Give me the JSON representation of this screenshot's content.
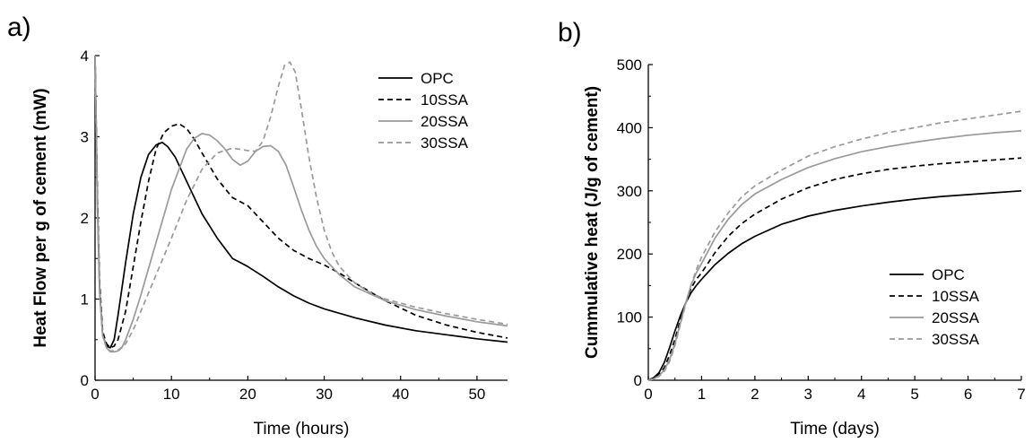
{
  "chart_data": [
    {
      "panel_label": "a)",
      "type": "line",
      "title": "",
      "xlabel": "Time (hours)",
      "ylabel": "Heat Flow per g of cement (mW)",
      "xlim": [
        0,
        54
      ],
      "ylim": [
        0,
        4
      ],
      "xticks": [
        0,
        10,
        20,
        30,
        40,
        50
      ],
      "yticks": [
        0,
        1,
        2,
        3,
        4
      ],
      "grid": false,
      "legend_position": "top-right",
      "series": [
        {
          "name": "OPC",
          "color": "#000000",
          "dash": "solid",
          "x": [
            0,
            0.3,
            0.6,
            1,
            1.5,
            2,
            2.5,
            3,
            4,
            5,
            6,
            7,
            8,
            8.8,
            9.5,
            10.5,
            12,
            14,
            16,
            18,
            19,
            20,
            22,
            24,
            26,
            28,
            30,
            34,
            38,
            42,
            46,
            50,
            54
          ],
          "y": [
            4.0,
            2.2,
            1.1,
            0.55,
            0.42,
            0.4,
            0.5,
            0.8,
            1.45,
            2.05,
            2.5,
            2.78,
            2.9,
            2.93,
            2.88,
            2.75,
            2.45,
            2.05,
            1.75,
            1.5,
            1.45,
            1.4,
            1.28,
            1.15,
            1.04,
            0.95,
            0.88,
            0.77,
            0.68,
            0.61,
            0.56,
            0.51,
            0.47
          ]
        },
        {
          "name": "10SSA",
          "color": "#000000",
          "dash": "dashed",
          "x": [
            0,
            0.3,
            0.6,
            1,
            1.5,
            2,
            2.5,
            3,
            4,
            5,
            6,
            7,
            8,
            9,
            10,
            11,
            12,
            13,
            14,
            16,
            18,
            19,
            20,
            21,
            22,
            24,
            26,
            28,
            30,
            32,
            34,
            38,
            42,
            46,
            50,
            54
          ],
          "y": [
            4.0,
            2.3,
            1.2,
            0.6,
            0.45,
            0.4,
            0.42,
            0.5,
            0.85,
            1.4,
            1.95,
            2.45,
            2.85,
            3.05,
            3.13,
            3.16,
            3.1,
            2.97,
            2.8,
            2.48,
            2.25,
            2.2,
            2.15,
            2.05,
            1.95,
            1.75,
            1.6,
            1.5,
            1.42,
            1.32,
            1.2,
            0.98,
            0.8,
            0.68,
            0.59,
            0.52
          ]
        },
        {
          "name": "20SSA",
          "color": "#9a9a9a",
          "dash": "solid",
          "x": [
            0,
            0.3,
            0.6,
            1,
            1.5,
            2,
            2.5,
            3,
            3.5,
            4,
            5,
            6,
            8,
            10,
            12,
            13,
            14,
            15,
            16,
            17,
            18,
            19,
            20,
            21,
            22,
            23,
            24,
            25,
            26,
            27,
            28,
            29,
            30,
            32,
            34,
            38,
            42,
            46,
            50,
            54
          ],
          "y": [
            4.0,
            2.2,
            1.1,
            0.55,
            0.4,
            0.35,
            0.35,
            0.36,
            0.4,
            0.5,
            0.75,
            1.05,
            1.7,
            2.35,
            2.85,
            2.98,
            3.04,
            3.02,
            2.95,
            2.85,
            2.72,
            2.65,
            2.7,
            2.82,
            2.88,
            2.89,
            2.82,
            2.65,
            2.38,
            2.1,
            1.85,
            1.65,
            1.5,
            1.3,
            1.15,
            0.98,
            0.87,
            0.79,
            0.72,
            0.67
          ]
        },
        {
          "name": "30SSA",
          "color": "#9a9a9a",
          "dash": "dashed",
          "x": [
            0,
            0.3,
            0.6,
            1,
            1.5,
            2,
            3,
            4,
            5,
            6,
            8,
            10,
            12,
            14,
            16,
            18,
            20,
            21,
            22,
            23,
            24,
            24.8,
            25.5,
            26.2,
            27,
            28,
            29,
            30,
            31,
            32,
            34,
            36,
            38,
            42,
            46,
            50,
            54
          ],
          "y": [
            4.0,
            2.1,
            1.05,
            0.55,
            0.4,
            0.36,
            0.37,
            0.45,
            0.62,
            0.85,
            1.3,
            1.75,
            2.22,
            2.6,
            2.8,
            2.86,
            2.83,
            2.82,
            2.95,
            3.25,
            3.62,
            3.88,
            3.92,
            3.8,
            3.35,
            2.75,
            2.25,
            1.85,
            1.58,
            1.4,
            1.2,
            1.08,
            1.0,
            0.9,
            0.82,
            0.75,
            0.69
          ]
        }
      ]
    },
    {
      "panel_label": "b)",
      "type": "line",
      "title": "",
      "xlabel": "Time (days)",
      "ylabel": "Cummulative heat (J/g of cement)",
      "xlim": [
        0,
        7
      ],
      "ylim": [
        0,
        500
      ],
      "xticks": [
        0,
        1,
        2,
        3,
        4,
        5,
        6,
        7
      ],
      "yticks": [
        0,
        100,
        200,
        300,
        400,
        500
      ],
      "grid": false,
      "legend_position": "bottom-right",
      "series": [
        {
          "name": "OPC",
          "color": "#000000",
          "dash": "solid",
          "x": [
            0,
            0.1,
            0.2,
            0.3,
            0.4,
            0.5,
            0.6,
            0.7,
            0.8,
            0.9,
            1.0,
            1.25,
            1.5,
            1.75,
            2.0,
            2.5,
            3.0,
            3.5,
            4.0,
            4.5,
            5.0,
            5.5,
            6.0,
            6.5,
            7.0
          ],
          "y": [
            0,
            4,
            12,
            28,
            52,
            78,
            102,
            122,
            138,
            150,
            160,
            183,
            201,
            216,
            228,
            247,
            260,
            269,
            276,
            282,
            287,
            291,
            294,
            297,
            300
          ]
        },
        {
          "name": "10SSA",
          "color": "#000000",
          "dash": "dashed",
          "x": [
            0,
            0.1,
            0.2,
            0.3,
            0.4,
            0.5,
            0.6,
            0.7,
            0.8,
            0.9,
            1.0,
            1.25,
            1.5,
            1.75,
            2.0,
            2.5,
            3.0,
            3.5,
            4.0,
            4.5,
            5.0,
            5.5,
            6.0,
            6.5,
            7.0
          ],
          "y": [
            0,
            3,
            9,
            20,
            40,
            65,
            95,
            122,
            145,
            160,
            170,
            202,
            228,
            248,
            263,
            287,
            305,
            318,
            327,
            334,
            339,
            343,
            346,
            349,
            352
          ]
        },
        {
          "name": "20SSA",
          "color": "#9a9a9a",
          "dash": "solid",
          "x": [
            0,
            0.1,
            0.2,
            0.3,
            0.4,
            0.5,
            0.6,
            0.7,
            0.8,
            0.9,
            1.0,
            1.25,
            1.5,
            1.75,
            2.0,
            2.5,
            3.0,
            3.5,
            4.0,
            4.5,
            5.0,
            5.5,
            6.0,
            6.5,
            7.0
          ],
          "y": [
            0,
            2,
            7,
            16,
            33,
            58,
            90,
            122,
            150,
            170,
            185,
            225,
            255,
            278,
            295,
            318,
            337,
            351,
            362,
            370,
            377,
            383,
            388,
            392,
            395
          ]
        },
        {
          "name": "30SSA",
          "color": "#9a9a9a",
          "dash": "dashed",
          "x": [
            0,
            0.1,
            0.2,
            0.3,
            0.4,
            0.5,
            0.6,
            0.7,
            0.8,
            0.9,
            1.0,
            1.25,
            1.5,
            1.75,
            2.0,
            2.5,
            3.0,
            3.5,
            4.0,
            4.5,
            5.0,
            5.5,
            6.0,
            6.5,
            7.0
          ],
          "y": [
            0,
            2,
            6,
            14,
            30,
            55,
            88,
            120,
            150,
            175,
            195,
            235,
            265,
            290,
            308,
            333,
            355,
            370,
            382,
            392,
            400,
            408,
            414,
            420,
            426
          ]
        }
      ]
    }
  ]
}
